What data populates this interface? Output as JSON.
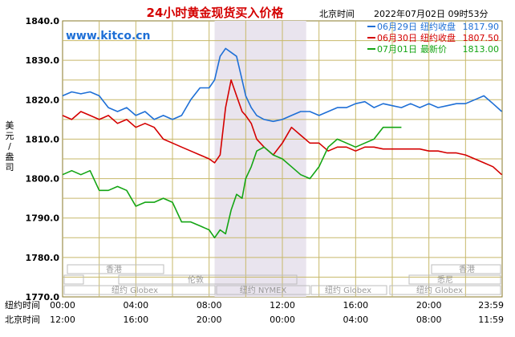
{
  "header": {
    "title": "24小时黄金现货买入价格",
    "timezone_label": "北京时间",
    "timestamp": "2022年07月02日 09时53分",
    "website": "www.kitco.cn"
  },
  "legend": [
    {
      "date": "06月29日",
      "label": "纽约收盘",
      "value": "1817.90",
      "color": "#1e6fd6"
    },
    {
      "date": "06月30日",
      "label": "纽约收盘",
      "value": "1807.50",
      "color": "#d40000"
    },
    {
      "date": "07月01日",
      "label": "最新价",
      "value": "1813.00",
      "color": "#14a514"
    }
  ],
  "axis": {
    "ylabel": "美元/盎司",
    "ylabel_chars": [
      "美",
      "元",
      "/",
      "盎",
      "司"
    ],
    "row1_label": "纽约时间",
    "row2_label": "北京时间",
    "x_ticks_ny": [
      "00:00",
      "04:00",
      "08:00",
      "12:00",
      "16:00",
      "20:00",
      "23:59"
    ],
    "x_ticks_bj": [
      "12:00",
      "16:00",
      "20:00",
      "00:00",
      "04:00",
      "08:00",
      "11:59"
    ]
  },
  "markets": {
    "hongkong_left": "香港",
    "london": "伦敦",
    "ny_globex_left": "纽约 Globex",
    "ny_nymex": "纽约 NYMEX",
    "ny_globex_mid": "纽约 Globex",
    "ny_globex_right": "纽约 Globex",
    "hongkong_right": "香港",
    "sydney": "悉尼"
  },
  "chart_data": {
    "type": "line",
    "ylim": [
      1770,
      1840
    ],
    "xlim": [
      0,
      24
    ],
    "y_ticks": [
      1770,
      1780,
      1790,
      1800,
      1810,
      1820,
      1830,
      1840
    ],
    "highlight_band_hours": [
      8.3,
      13.3
    ],
    "series": [
      {
        "name": "06月29日",
        "color": "#1e6fd6",
        "x": [
          0,
          0.5,
          1,
          1.5,
          2,
          2.5,
          3,
          3.5,
          4,
          4.5,
          5,
          5.5,
          6,
          6.5,
          7,
          7.5,
          8,
          8.3,
          8.6,
          8.9,
          9.2,
          9.5,
          9.8,
          10,
          10.3,
          10.6,
          11,
          11.5,
          12,
          12.5,
          13,
          13.5,
          14,
          14.5,
          15,
          15.5,
          16,
          16.5,
          17,
          17.5,
          18,
          18.5,
          19,
          19.5,
          20,
          20.5,
          21,
          21.5,
          22,
          22.5,
          23,
          23.5,
          23.98
        ],
        "y": [
          1821,
          1822,
          1821.5,
          1822,
          1821,
          1818,
          1817,
          1818,
          1816,
          1817,
          1815,
          1816,
          1815,
          1816,
          1820,
          1823,
          1823,
          1825,
          1831,
          1833,
          1832,
          1831,
          1825,
          1821,
          1818,
          1816,
          1815,
          1814.5,
          1815,
          1816,
          1817,
          1817,
          1816,
          1817,
          1818,
          1818,
          1819,
          1819.5,
          1818,
          1819,
          1818.5,
          1818,
          1819,
          1818,
          1819,
          1818,
          1818.5,
          1819,
          1819,
          1820,
          1821,
          1819,
          1817
        ]
      },
      {
        "name": "06月30日",
        "color": "#d40000",
        "x": [
          0,
          0.5,
          1,
          1.5,
          2,
          2.5,
          3,
          3.5,
          4,
          4.5,
          5,
          5.5,
          6,
          6.5,
          7,
          7.5,
          8,
          8.3,
          8.6,
          8.9,
          9.2,
          9.5,
          9.8,
          10,
          10.3,
          10.6,
          11,
          11.5,
          12,
          12.5,
          13,
          13.5,
          14,
          14.5,
          15,
          15.5,
          16,
          16.5,
          17,
          17.5,
          18,
          18.5,
          19,
          19.5,
          20,
          20.5,
          21,
          21.5,
          22,
          22.5,
          23,
          23.5,
          23.98
        ],
        "y": [
          1816,
          1815,
          1817,
          1816,
          1815,
          1816,
          1814,
          1815,
          1813,
          1814,
          1813,
          1810,
          1809,
          1808,
          1807,
          1806,
          1805,
          1804,
          1806,
          1818,
          1825,
          1821,
          1817,
          1816,
          1814,
          1810,
          1808,
          1806,
          1809,
          1813,
          1811,
          1809,
          1809,
          1807,
          1808,
          1808,
          1807,
          1808,
          1808,
          1807.5,
          1807.5,
          1807.5,
          1807.5,
          1807.5,
          1807,
          1807,
          1806.5,
          1806.5,
          1806,
          1805,
          1804,
          1803,
          1801
        ]
      },
      {
        "name": "07月01日",
        "color": "#14a514",
        "x": [
          0,
          0.5,
          1,
          1.5,
          2,
          2.5,
          3,
          3.5,
          4,
          4.5,
          5,
          5.5,
          6,
          6.5,
          7,
          7.5,
          8,
          8.3,
          8.6,
          8.9,
          9.2,
          9.5,
          9.8,
          10,
          10.3,
          10.6,
          11,
          11.5,
          12,
          12.5,
          13,
          13.5,
          14,
          14.5,
          15,
          15.5,
          16,
          16.5,
          17,
          17.5,
          18,
          18.5
        ],
        "y": [
          1801,
          1802,
          1801,
          1802,
          1797,
          1797,
          1798,
          1797,
          1793,
          1794,
          1794,
          1795,
          1794,
          1789,
          1789,
          1788,
          1787,
          1785,
          1787,
          1786,
          1792,
          1796,
          1795,
          1800,
          1803,
          1807,
          1808,
          1806,
          1805,
          1803,
          1801,
          1800,
          1803,
          1808,
          1810,
          1809,
          1808,
          1809,
          1810,
          1813,
          1813,
          1813
        ]
      }
    ]
  }
}
